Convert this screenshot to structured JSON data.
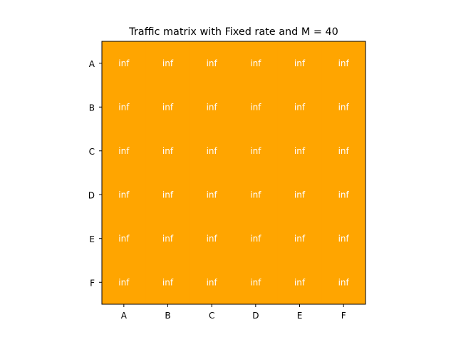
{
  "chart_data": {
    "type": "heatmap",
    "title": "Traffic matrix with Fixed rate and M = 40",
    "x_categories": [
      "A",
      "B",
      "C",
      "D",
      "E",
      "F"
    ],
    "y_categories": [
      "A",
      "B",
      "C",
      "D",
      "E",
      "F"
    ],
    "values": [
      [
        "inf",
        "inf",
        "inf",
        "inf",
        "inf",
        "inf"
      ],
      [
        "inf",
        "inf",
        "inf",
        "inf",
        "inf",
        "inf"
      ],
      [
        "inf",
        "inf",
        "inf",
        "inf",
        "inf",
        "inf"
      ],
      [
        "inf",
        "inf",
        "inf",
        "inf",
        "inf",
        "inf"
      ],
      [
        "inf",
        "inf",
        "inf",
        "inf",
        "inf",
        "inf"
      ],
      [
        "inf",
        "inf",
        "inf",
        "inf",
        "inf",
        "inf"
      ]
    ],
    "cell_color": "#ffa500",
    "cell_text_color": "#ffffff",
    "xlabel": "",
    "ylabel": "",
    "grid": false,
    "legend": "none"
  }
}
